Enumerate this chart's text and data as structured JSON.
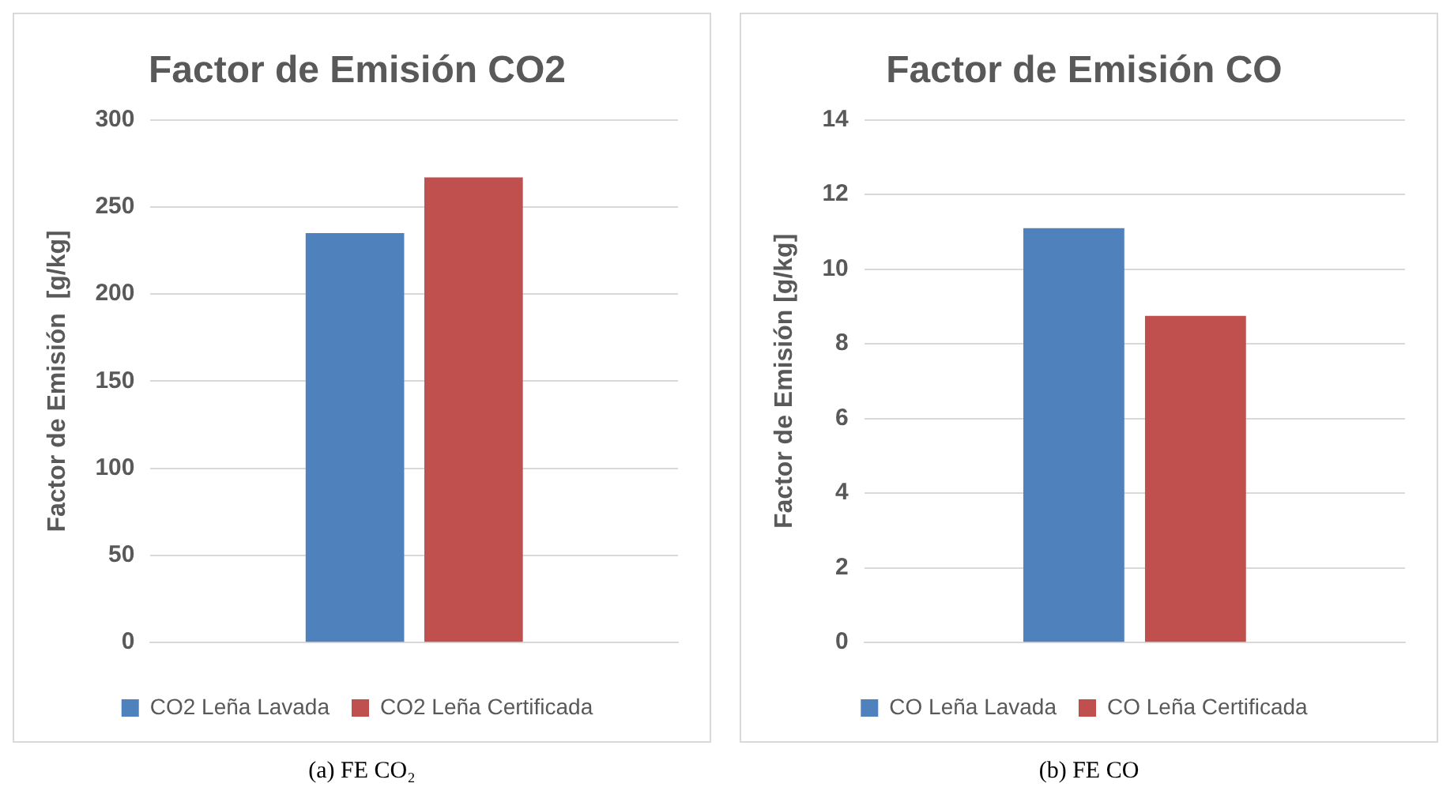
{
  "chart_data": [
    {
      "type": "bar",
      "title": "Factor de Emisión CO2",
      "ylabel": "Factor de Emisión  [g/kg]",
      "categories": [
        null
      ],
      "series": [
        {
          "name": "CO2 Leña Lavada",
          "color": "#4f81bd",
          "values": [
            235
          ]
        },
        {
          "name": "CO2 Leña Certificada",
          "color": "#c0504d",
          "values": [
            267
          ]
        }
      ],
      "ylim": [
        0,
        300
      ],
      "yticks": [
        0,
        50,
        100,
        150,
        200,
        250,
        300
      ],
      "grid": "y",
      "legend": "bottom",
      "annotations": [
        "(a) FE CO₂"
      ]
    },
    {
      "type": "bar",
      "title": "Factor de Emisión CO",
      "ylabel": "Factor de Emisión [g/kg]",
      "categories": [
        null
      ],
      "series": [
        {
          "name": "CO Leña Lavada",
          "color": "#4f81bd",
          "values": [
            11.1
          ]
        },
        {
          "name": "CO Leña Certificada",
          "color": "#c0504d",
          "values": [
            8.75
          ]
        }
      ],
      "ylim": [
        0,
        14
      ],
      "yticks": [
        0,
        2,
        4,
        6,
        8,
        10,
        12,
        14
      ],
      "grid": "y",
      "legend": "bottom",
      "annotations": [
        "(b) FE CO"
      ]
    }
  ]
}
